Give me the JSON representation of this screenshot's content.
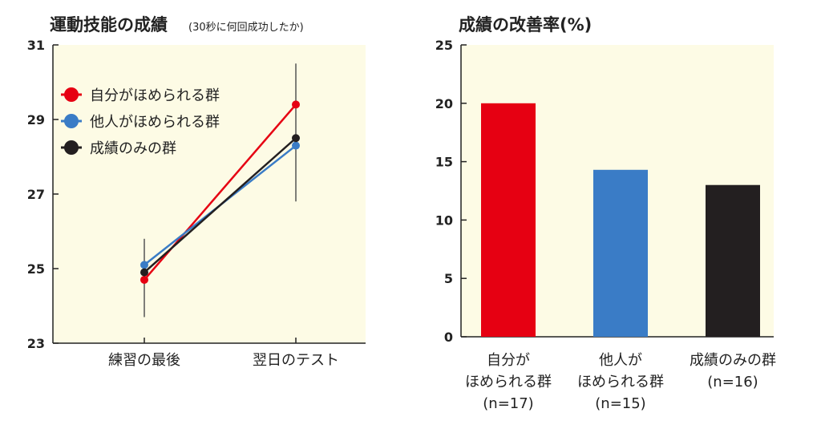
{
  "chart_data": [
    {
      "type": "line",
      "title": "運動技能の成績",
      "subtitle": "(30秒に何回成功したか)",
      "categories": [
        "練習の最後",
        "翌日のテスト"
      ],
      "ylim": [
        23,
        31
      ],
      "yticks": [
        "31",
        "29",
        "27",
        "25",
        "23"
      ],
      "legend_position": "top-left",
      "grid": false,
      "error_bars": {
        "練習の最後": [
          23.7,
          25.8
        ],
        "翌日のテスト": [
          26.8,
          30.5
        ]
      },
      "series": [
        {
          "name": "自分がほめられる群",
          "values": [
            24.7,
            29.4
          ],
          "color": "#e60012"
        },
        {
          "name": "他人がほめられる群",
          "values": [
            25.1,
            28.3
          ],
          "color": "#3a7cc6"
        },
        {
          "name": "成績のみの群",
          "values": [
            24.9,
            28.5
          ],
          "color": "#231f20"
        }
      ]
    },
    {
      "type": "bar",
      "title": "成績の改善率(%)",
      "categories": [
        [
          "自分が",
          "ほめられる群",
          "(n=17)"
        ],
        [
          "他人が",
          "ほめられる群",
          "(n=15)"
        ],
        [
          "成績のみの群",
          "(n=16)"
        ]
      ],
      "values": [
        20,
        14.3,
        13
      ],
      "colors": [
        "#e60012",
        "#3a7cc6",
        "#231f20"
      ],
      "ylim": [
        0,
        25
      ],
      "yticks": [
        "25",
        "20",
        "15",
        "10",
        "5",
        "0"
      ],
      "grid": false
    }
  ]
}
